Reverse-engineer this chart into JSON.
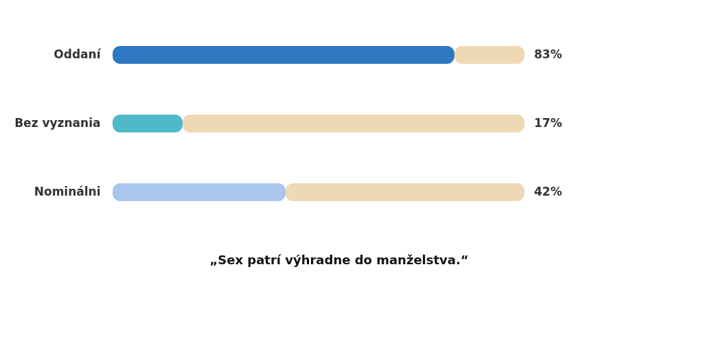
{
  "chart_data": {
    "type": "bar",
    "orientation": "horizontal",
    "stacked": true,
    "categories": [
      "Oddaní",
      "Bez vyznania",
      "Nominálni"
    ],
    "series": [
      {
        "colors": [
          "#2e78c2",
          "#4fb9c9",
          "#aac6ea"
        ],
        "values": [
          83,
          17,
          42
        ],
        "value_labels": [
          "83%",
          "17%",
          "42%"
        ]
      },
      {
        "color": "#efd9b4",
        "values": [
          17,
          83,
          58
        ]
      }
    ],
    "xlim": [
      0,
      100
    ],
    "tick_labels": "y",
    "annotations": [
      "„Sex patrí výhradne do manželstva.“"
    ]
  }
}
